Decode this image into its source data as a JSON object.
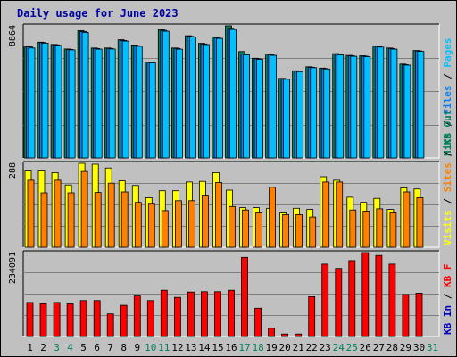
{
  "chart_data": {
    "type": "bar",
    "title": "Daily usage for June 2023",
    "days": [
      "1",
      "2",
      "3",
      "4",
      "5",
      "6",
      "7",
      "8",
      "9",
      "10",
      "11",
      "12",
      "13",
      "14",
      "15",
      "16",
      "17",
      "18",
      "19",
      "20",
      "21",
      "22",
      "23",
      "24",
      "25",
      "26",
      "27",
      "28",
      "29",
      "30",
      "31"
    ],
    "weekend_days": [
      "3",
      "4",
      "10",
      "11",
      "17",
      "18",
      "24",
      "25",
      "31"
    ],
    "colors": {
      "background": "#c0c0c0",
      "grid": "#808080",
      "hits": "#00805c",
      "files": "#0080ff",
      "pages": "#00c0ff",
      "visits": "#ffff00",
      "sites": "#ff8000",
      "kbytes": "#ff0000",
      "weekday_label": "#000000",
      "weekend_label": "#00805c"
    },
    "panels": [
      {
        "id": "hits_panel",
        "ymax_label": "8864",
        "ymax": 8864,
        "legend": [
          {
            "text": "Hits",
            "color": "#00805c"
          },
          {
            "text": "Files",
            "color": "#0080ff"
          },
          {
            "text": "Pages",
            "color": "#00c0ff"
          }
        ],
        "series": [
          {
            "name": "Hits",
            "values": [
              7450,
              7770,
              7620,
              7310,
              8540,
              7380,
              7380,
              7930,
              7580,
              6440,
              8610,
              7380,
              8200,
              7690,
              8110,
              8864,
              7140,
              6690,
              6970,
              5340,
              5850,
              6120,
              6030,
              7000,
              6880,
              6860,
              7520,
              7380,
              6300,
              7210
            ]
          },
          {
            "name": "Files",
            "values": [
              7450,
              7740,
              7590,
              7280,
              8480,
              7340,
              7350,
              7880,
              7530,
              6410,
              8560,
              7340,
              8160,
              7650,
              8070,
              8700,
              6980,
              6660,
              6920,
              5310,
              5820,
              6090,
              6000,
              6960,
              6850,
              6830,
              7480,
              7340,
              6260,
              7180
            ]
          },
          {
            "name": "Pages",
            "values": [
              7380,
              7700,
              7550,
              7250,
              8420,
              7300,
              7310,
              7840,
              7490,
              6380,
              8500,
              7300,
              8120,
              7610,
              8020,
              8620,
              6920,
              6620,
              6880,
              5280,
              5790,
              6060,
              5970,
              6920,
              6820,
              6800,
              7440,
              7300,
              6230,
              7150
            ]
          }
        ]
      },
      {
        "id": "visits_panel",
        "ymax_label": "288",
        "ymax": 288,
        "legend": [
          {
            "text": "Visits",
            "color": "#ffff00"
          },
          {
            "text": "Sites",
            "color": "#ff8000"
          },
          {
            "text": "KB Out",
            "color": "#00805c"
          }
        ],
        "series": [
          {
            "name": "Visits",
            "values": [
              262,
              262,
              256,
              214,
              288,
              285,
              272,
              228,
              212,
              170,
              194,
              194,
              224,
              226,
              256,
              196,
              136,
              136,
              134,
              118,
              134,
              130,
              242,
              230,
              172,
              154,
              168,
              130,
              204,
              200
            ]
          },
          {
            "name": "Sites",
            "values": [
              230,
              187,
              230,
              187,
              260,
              188,
              220,
              190,
              154,
              148,
              126,
              160,
              160,
              176,
              222,
              140,
              128,
              118,
              206,
              112,
              112,
              104,
              224,
              224,
              128,
              124,
              132,
              118,
              190,
              170
            ]
          }
        ]
      },
      {
        "id": "kbytes_panel",
        "ymax_label": "234091",
        "ymax": 234091,
        "legend": [
          {
            "text": "KB In",
            "color": "#0000c0"
          },
          {
            "text": "KB F",
            "color": "#ff0000"
          }
        ],
        "series": [
          {
            "name": "KB F",
            "values": [
              95000,
              91000,
              95000,
              91000,
              100000,
              100000,
              63000,
              87000,
              113000,
              100000,
              129000,
              109000,
              124000,
              125000,
              125000,
              129000,
              221000,
              79000,
              23000,
              7000,
              7000,
              111000,
              202000,
              190000,
              212000,
              234091,
              226000,
              202000,
              117000,
              121000
            ]
          }
        ]
      }
    ]
  }
}
